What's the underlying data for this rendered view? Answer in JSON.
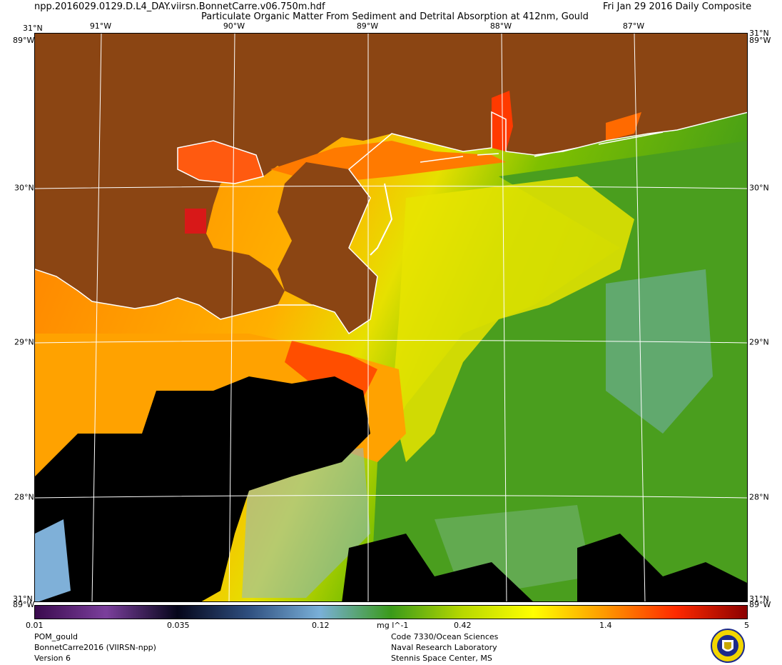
{
  "header": {
    "filename": "npp.2016029.0129.D.L4_DAY.viirsn.BonnetCarre.v06.750m.hdf",
    "title": "Particulate Organic Matter From Sediment and Detrital Absorption at 412nm, Gould",
    "date": "Fri Jan 29 2016 Daily Composite"
  },
  "axes": {
    "lon_labels": [
      "91°W",
      "90°W",
      "89°W",
      "88°W",
      "87°W"
    ],
    "lat_labels": [
      "30°N",
      "29°N",
      "28°N"
    ],
    "corner_top": "31°N",
    "corner_w_top": "89°W",
    "corner_w_bottom": "89°W",
    "corner_bottom": "31°N"
  },
  "colorbar": {
    "ticks": [
      "0.01",
      "0.035",
      "0.12",
      "0.42",
      "1.4",
      "5"
    ],
    "units": "mg l^-1",
    "colors": [
      "#3a0a4e",
      "#7b3f9c",
      "#05051a",
      "#2f4f7f",
      "#7ab0d8",
      "#3a9a1a",
      "#b7d800",
      "#ffff00",
      "#ff9900",
      "#ff2a00",
      "#8b0000"
    ]
  },
  "footer": {
    "left": [
      "POM_gould",
      "BonnetCarre2016 (VIIRSN-npp)",
      "Version 6"
    ],
    "center": [
      "Code 7330/Ocean Sciences",
      "Naval Research Laboratory",
      "Stennis Space Center, MS"
    ]
  },
  "map_colors": {
    "land": "#8b4513",
    "nodata": "#000000",
    "coast": "#ffffff"
  }
}
